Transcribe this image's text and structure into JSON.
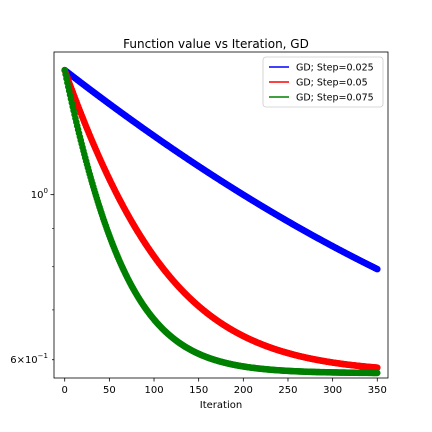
{
  "chart_data": {
    "type": "scatter",
    "title": "Function value vs Iteration, GD",
    "xlabel": "Iteration",
    "ylabel": "",
    "xlim": [
      -12,
      362
    ],
    "ylim": [
      0.567,
      1.555
    ],
    "y_scale": "log",
    "x_ticks": [
      0,
      50,
      100,
      150,
      200,
      250,
      300,
      350
    ],
    "y_ticks": [
      {
        "value": 1.0,
        "base": "10",
        "exp": "0",
        "major": true
      },
      {
        "value": 0.6,
        "coef": "6",
        "base": "10",
        "exp": "−1",
        "major": false
      }
    ],
    "y_minor_ticks": [
      0.7,
      0.8,
      0.9
    ],
    "grid": false,
    "legend_position": "top-right",
    "series": [
      {
        "name": "GD; Step=0.025",
        "color": "#0000ff",
        "y0": 1.47,
        "y_inf": 0.44,
        "rate": 0.00305,
        "n": 351
      },
      {
        "name": "GD; Step=0.05",
        "color": "#ff0000",
        "y0": 1.47,
        "y_inf": 0.575,
        "rate": 0.0127,
        "n": 351
      },
      {
        "name": "GD; Step=0.075",
        "color": "#008000",
        "y0": 1.47,
        "y_inf": 0.5755,
        "rate": 0.0215,
        "n": 351
      }
    ]
  }
}
